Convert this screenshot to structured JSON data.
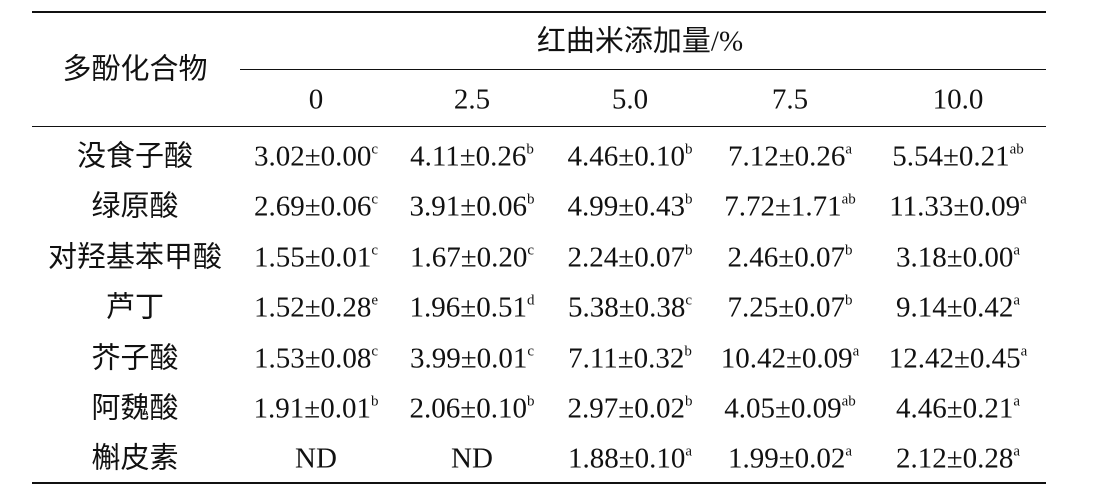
{
  "table": {
    "row_header": "多酚化合物",
    "group_header": "红曲米添加量/%",
    "columns": [
      "0",
      "2.5",
      "5.0",
      "7.5",
      "10.0"
    ],
    "rows": [
      {
        "name": "没食子酸",
        "cells": [
          {
            "text": "3.02±0.00",
            "sup": "c"
          },
          {
            "text": "4.11±0.26",
            "sup": "b"
          },
          {
            "text": "4.46±0.10",
            "sup": "b"
          },
          {
            "text": "7.12±0.26",
            "sup": "a"
          },
          {
            "text": "5.54±0.21",
            "sup": "ab"
          }
        ]
      },
      {
        "name": "绿原酸",
        "cells": [
          {
            "text": "2.69±0.06",
            "sup": "c"
          },
          {
            "text": "3.91±0.06",
            "sup": "b"
          },
          {
            "text": "4.99±0.43",
            "sup": "b"
          },
          {
            "text": "7.72±1.71",
            "sup": "ab"
          },
          {
            "text": "11.33±0.09",
            "sup": "a"
          }
        ]
      },
      {
        "name": "对羟基苯甲酸",
        "cells": [
          {
            "text": "1.55±0.01",
            "sup": "c"
          },
          {
            "text": "1.67±0.20",
            "sup": "c"
          },
          {
            "text": "2.24±0.07",
            "sup": "b"
          },
          {
            "text": "2.46±0.07",
            "sup": "b"
          },
          {
            "text": "3.18±0.00",
            "sup": "a"
          }
        ]
      },
      {
        "name": "芦丁",
        "cells": [
          {
            "text": "1.52±0.28",
            "sup": "e"
          },
          {
            "text": "1.96±0.51",
            "sup": "d"
          },
          {
            "text": "5.38±0.38",
            "sup": "c"
          },
          {
            "text": "7.25±0.07",
            "sup": "b"
          },
          {
            "text": "9.14±0.42",
            "sup": "a"
          }
        ]
      },
      {
        "name": "芥子酸",
        "cells": [
          {
            "text": "1.53±0.08",
            "sup": "c"
          },
          {
            "text": "3.99±0.01",
            "sup": "c"
          },
          {
            "text": "7.11±0.32",
            "sup": "b"
          },
          {
            "text": "10.42±0.09",
            "sup": "a"
          },
          {
            "text": "12.42±0.45",
            "sup": "a"
          }
        ]
      },
      {
        "name": "阿魏酸",
        "cells": [
          {
            "text": "1.91±0.01",
            "sup": "b"
          },
          {
            "text": "2.06±0.10",
            "sup": "b"
          },
          {
            "text": "2.97±0.02",
            "sup": "b"
          },
          {
            "text": "4.05±0.09",
            "sup": "ab"
          },
          {
            "text": "4.46±0.21",
            "sup": "a"
          }
        ]
      },
      {
        "name": "槲皮素",
        "cells": [
          {
            "text": "ND"
          },
          {
            "text": "ND"
          },
          {
            "text": "1.88±0.10",
            "sup": "a"
          },
          {
            "text": "1.99±0.02",
            "sup": "a"
          },
          {
            "text": "2.12±0.28",
            "sup": "a"
          }
        ]
      }
    ]
  }
}
